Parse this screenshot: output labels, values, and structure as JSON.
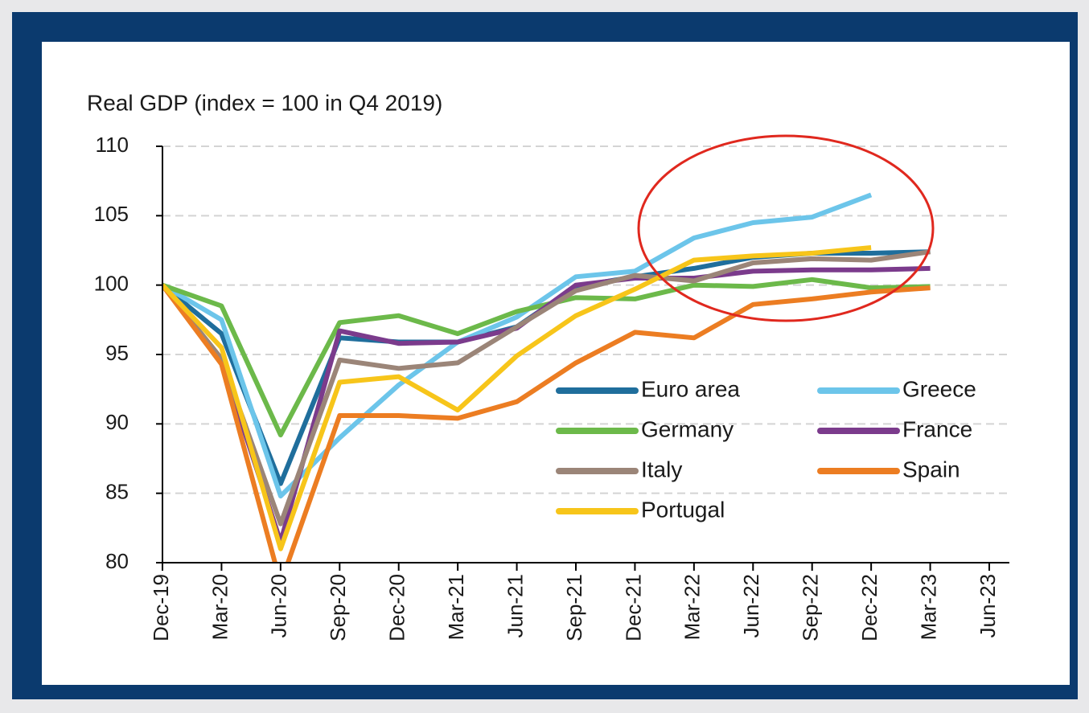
{
  "chart_data": {
    "type": "line",
    "title": "Real GDP (index = 100 in Q4 2019)",
    "categories": [
      "Dec-19",
      "Mar-20",
      "Jun-20",
      "Sep-20",
      "Dec-20",
      "Mar-21",
      "Jun-21",
      "Sep-21",
      "Dec-21",
      "Mar-22",
      "Jun-22",
      "Sep-22",
      "Dec-22",
      "Mar-23",
      "Jun-23"
    ],
    "ylim": [
      80,
      110
    ],
    "yticks": [
      80,
      85,
      90,
      95,
      100,
      105,
      110
    ],
    "grid": true,
    "legend": "lower right",
    "series": [
      {
        "name": "Euro area",
        "color": "#1f6e9c",
        "values": [
          100,
          96.5,
          85.7,
          96.2,
          95.9,
          95.9,
          97.0,
          99.9,
          100.6,
          101.2,
          102.0,
          102.3,
          102.3,
          102.4,
          null
        ]
      },
      {
        "name": "Greece",
        "color": "#6cc5ea",
        "values": [
          100,
          97.5,
          84.8,
          89.0,
          92.8,
          95.9,
          97.7,
          100.6,
          101.0,
          103.4,
          104.5,
          104.9,
          106.5,
          null,
          null
        ]
      },
      {
        "name": "Germany",
        "color": "#6cb94a",
        "values": [
          100,
          98.5,
          89.2,
          97.3,
          97.8,
          96.5,
          98.1,
          99.1,
          99.0,
          100.0,
          99.9,
          100.4,
          99.8,
          99.9,
          null
        ]
      },
      {
        "name": "France",
        "color": "#7b3b8c",
        "values": [
          100,
          94.5,
          81.5,
          96.7,
          95.8,
          95.9,
          96.9,
          100.0,
          100.5,
          100.5,
          101.0,
          101.1,
          101.1,
          101.2,
          null
        ]
      },
      {
        "name": "Italy",
        "color": "#9b8578",
        "values": [
          100,
          94.7,
          82.8,
          94.6,
          94.0,
          94.4,
          97.0,
          99.6,
          100.7,
          100.3,
          101.6,
          101.9,
          101.8,
          102.4,
          null
        ]
      },
      {
        "name": "Spain",
        "color": "#ec7d22",
        "values": [
          100,
          94.3,
          78.5,
          90.6,
          90.6,
          90.4,
          91.6,
          94.4,
          96.6,
          96.2,
          98.6,
          99.0,
          99.5,
          99.8,
          null
        ]
      },
      {
        "name": "Portugal",
        "color": "#f7c51a",
        "values": [
          100,
          95.5,
          81.0,
          93.0,
          93.4,
          91.0,
          94.9,
          97.8,
          99.7,
          101.8,
          102.1,
          102.3,
          102.7,
          null,
          null
        ]
      }
    ]
  }
}
